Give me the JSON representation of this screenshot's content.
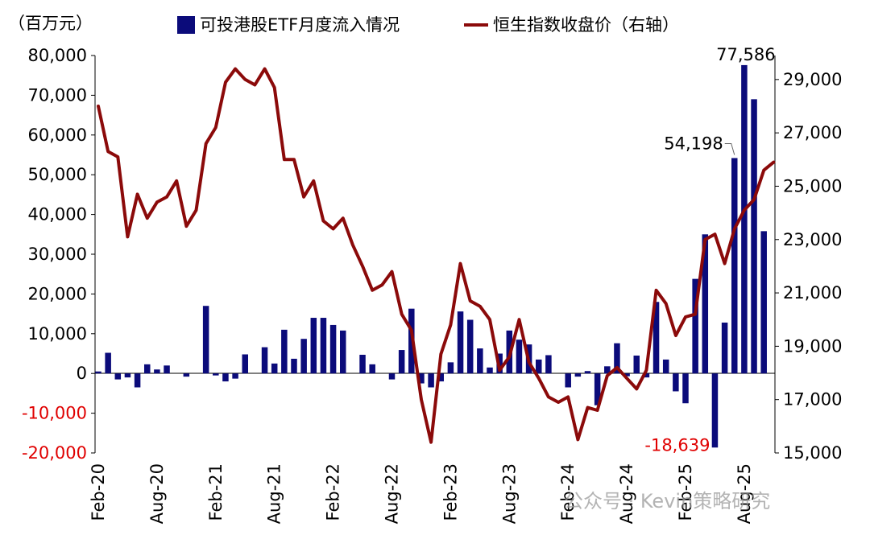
{
  "chart_data": {
    "type": "bar",
    "unit_label": "（百万元）",
    "colors": {
      "bars": "#0b0b7a",
      "line": "#8b0a0a",
      "negative_tick": "#e00000"
    },
    "left_axis": {
      "ylim": [
        -20000,
        80000
      ],
      "ticks": [
        80000,
        70000,
        60000,
        50000,
        40000,
        30000,
        20000,
        10000,
        0,
        -10000,
        -20000
      ],
      "tick_labels": [
        "80,000",
        "70,000",
        "60,000",
        "50,000",
        "40,000",
        "30,000",
        "20,000",
        "10,000",
        "0",
        "-10,000",
        "-20,000"
      ]
    },
    "right_axis": {
      "ylim": [
        15000,
        29900
      ],
      "ticks": [
        29000,
        27000,
        25000,
        23000,
        21000,
        19000,
        17000,
        15000
      ],
      "tick_labels": [
        "29,000",
        "27,000",
        "25,000",
        "23,000",
        "21,000",
        "19,000",
        "17,000",
        "15,000"
      ]
    },
    "x_ticks": [
      {
        "index": 0,
        "label": "Feb-20"
      },
      {
        "index": 6,
        "label": "Aug-20"
      },
      {
        "index": 12,
        "label": "Feb-21"
      },
      {
        "index": 18,
        "label": "Aug-21"
      },
      {
        "index": 24,
        "label": "Feb-22"
      },
      {
        "index": 30,
        "label": "Aug-22"
      },
      {
        "index": 36,
        "label": "Feb-23"
      },
      {
        "index": 42,
        "label": "Aug-23"
      },
      {
        "index": 48,
        "label": "Feb-24"
      },
      {
        "index": 54,
        "label": "Aug-24"
      },
      {
        "index": 60,
        "label": "Feb-25"
      },
      {
        "index": 66,
        "label": "Aug-25"
      }
    ],
    "series": [
      {
        "name": "可投港股ETF月度流入情况",
        "kind": "bar",
        "axis": "left",
        "values": [
          500,
          5200,
          -1500,
          -1000,
          -3500,
          2300,
          1000,
          2000,
          0,
          -800,
          0,
          17000,
          -500,
          -2000,
          -1300,
          4800,
          0,
          6600,
          2500,
          11000,
          3700,
          8700,
          14000,
          14000,
          12200,
          10800,
          0,
          4700,
          2300,
          0,
          -1500,
          5900,
          16300,
          -2500,
          -3500,
          -2000,
          2800,
          15600,
          13500,
          6300,
          1500,
          5000,
          10800,
          8500,
          7300,
          3500,
          4600,
          0,
          -3500,
          -800,
          600,
          -8000,
          1800,
          7600,
          -700,
          4500,
          -1000,
          18000,
          3500,
          -4500,
          -7500,
          23800,
          35000,
          -18639,
          12800,
          54198,
          77586,
          69000,
          35800
        ]
      },
      {
        "name": "恒生指数收盘价（右轴）",
        "kind": "line",
        "axis": "right",
        "values": [
          28000,
          26300,
          26100,
          23100,
          24700,
          23800,
          24400,
          24600,
          25200,
          23500,
          24100,
          26600,
          27200,
          28900,
          29400,
          29000,
          28800,
          29400,
          28700,
          26000,
          26000,
          24600,
          25200,
          23700,
          23400,
          23800,
          22800,
          22000,
          21100,
          21300,
          21800,
          20200,
          19600,
          17000,
          15400,
          18700,
          19800,
          22100,
          20700,
          20500,
          20000,
          18100,
          18600,
          20000,
          18400,
          17800,
          17100,
          16900,
          17100,
          15500,
          16700,
          16600,
          17900,
          18200,
          17800,
          17400,
          18100,
          21100,
          20600,
          19400,
          20100,
          20200,
          23000,
          23200,
          22100,
          23400,
          24100,
          24500,
          25600,
          25900
        ]
      }
    ],
    "annotations": [
      {
        "index": 66,
        "value": 77586,
        "label": "77,586"
      },
      {
        "index": 65,
        "value": 54198,
        "label": "54,198"
      },
      {
        "index": 63,
        "value": -18639,
        "label": "-18,639"
      }
    ],
    "grid": false,
    "legend": "top"
  },
  "watermark": {
    "text": "公众号 · Kevin策略研究"
  }
}
